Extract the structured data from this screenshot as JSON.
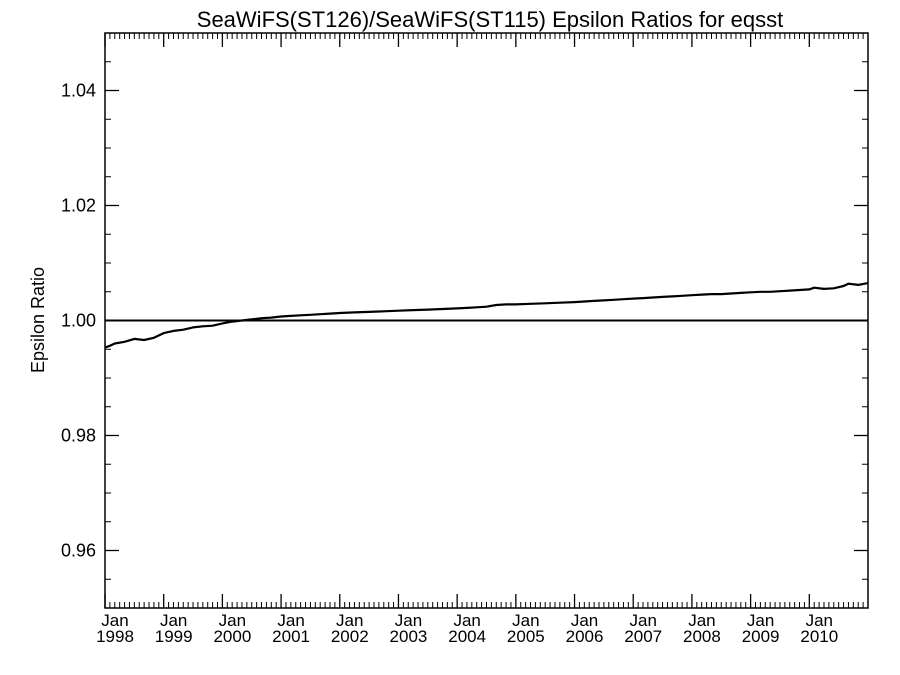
{
  "chart_data": {
    "type": "line",
    "title": "SeaWiFS(ST126)/SeaWiFS(ST115)  Epsilon Ratios for eqsst",
    "xlabel": "",
    "ylabel": "Epsilon Ratio",
    "xlim": [
      "1998-01",
      "2011-01"
    ],
    "ylim": [
      0.95,
      1.05
    ],
    "yticks": [
      0.96,
      0.98,
      1.0,
      1.02,
      1.04
    ],
    "ytick_labels": [
      "0.96",
      "0.98",
      "1.00",
      "1.02",
      "1.04"
    ],
    "xticks": [
      {
        "date": "1998-01",
        "line1": "Jan",
        "line2": "1998"
      },
      {
        "date": "1999-01",
        "line1": "Jan",
        "line2": "1999"
      },
      {
        "date": "2000-01",
        "line1": "Jan",
        "line2": "2000"
      },
      {
        "date": "2001-01",
        "line1": "Jan",
        "line2": "2001"
      },
      {
        "date": "2002-01",
        "line1": "Jan",
        "line2": "2002"
      },
      {
        "date": "2003-01",
        "line1": "Jan",
        "line2": "2003"
      },
      {
        "date": "2004-01",
        "line1": "Jan",
        "line2": "2004"
      },
      {
        "date": "2005-01",
        "line1": "Jan",
        "line2": "2005"
      },
      {
        "date": "2006-01",
        "line1": "Jan",
        "line2": "2006"
      },
      {
        "date": "2007-01",
        "line1": "Jan",
        "line2": "2007"
      },
      {
        "date": "2008-01",
        "line1": "Jan",
        "line2": "2008"
      },
      {
        "date": "2009-01",
        "line1": "Jan",
        "line2": "2009"
      },
      {
        "date": "2010-01",
        "line1": "Jan",
        "line2": "2010"
      }
    ],
    "reference_line": 1.0,
    "grid": false,
    "series": [
      {
        "x": [
          "1998-01",
          "1998-02",
          "1998-03",
          "1998-05",
          "1998-07",
          "1998-09",
          "1998-11",
          "1999-01",
          "1999-03",
          "1999-05",
          "1999-07",
          "1999-09",
          "1999-11",
          "2000-01",
          "2000-03",
          "2000-05",
          "2000-07",
          "2000-09",
          "2000-11",
          "2001-01",
          "2001-03",
          "2001-05",
          "2001-07",
          "2001-09",
          "2001-11",
          "2002-01",
          "2002-04",
          "2002-07",
          "2002-10",
          "2003-01",
          "2003-04",
          "2003-07",
          "2003-10",
          "2004-01",
          "2004-03",
          "2004-05",
          "2004-07",
          "2004-09",
          "2004-11",
          "2005-01",
          "2005-04",
          "2005-07",
          "2005-10",
          "2006-01",
          "2006-03",
          "2006-05",
          "2006-07",
          "2006-09",
          "2006-11",
          "2007-01",
          "2007-03",
          "2007-05",
          "2007-07",
          "2007-09",
          "2007-11",
          "2008-01",
          "2008-03",
          "2008-05",
          "2008-07",
          "2008-09",
          "2008-11",
          "2009-01",
          "2009-03",
          "2009-05",
          "2009-07",
          "2009-09",
          "2009-11",
          "2010-01",
          "2010-02",
          "2010-04",
          "2010-06",
          "2010-08",
          "2010-09",
          "2010-11",
          "2011-01"
        ],
        "y": [
          0.9953,
          0.9956,
          0.996,
          0.9963,
          0.9968,
          0.9966,
          0.997,
          0.9978,
          0.9982,
          0.9984,
          0.9988,
          0.999,
          0.9991,
          0.9995,
          0.9998,
          1.0,
          1.0002,
          1.0004,
          1.0005,
          1.0007,
          1.0008,
          1.0009,
          1.001,
          1.0011,
          1.0012,
          1.0013,
          1.0014,
          1.0015,
          1.0016,
          1.0017,
          1.0018,
          1.0019,
          1.002,
          1.0021,
          1.0022,
          1.0023,
          1.0024,
          1.0027,
          1.0028,
          1.0028,
          1.0029,
          1.003,
          1.0031,
          1.0032,
          1.0033,
          1.0034,
          1.0035,
          1.0036,
          1.0037,
          1.0038,
          1.0039,
          1.004,
          1.0041,
          1.0042,
          1.0043,
          1.0044,
          1.0045,
          1.0046,
          1.0046,
          1.0047,
          1.0048,
          1.0049,
          1.005,
          1.005,
          1.0051,
          1.0052,
          1.0053,
          1.0054,
          1.0057,
          1.0055,
          1.0056,
          1.006,
          1.0064,
          1.0062,
          1.0065
        ]
      }
    ]
  }
}
